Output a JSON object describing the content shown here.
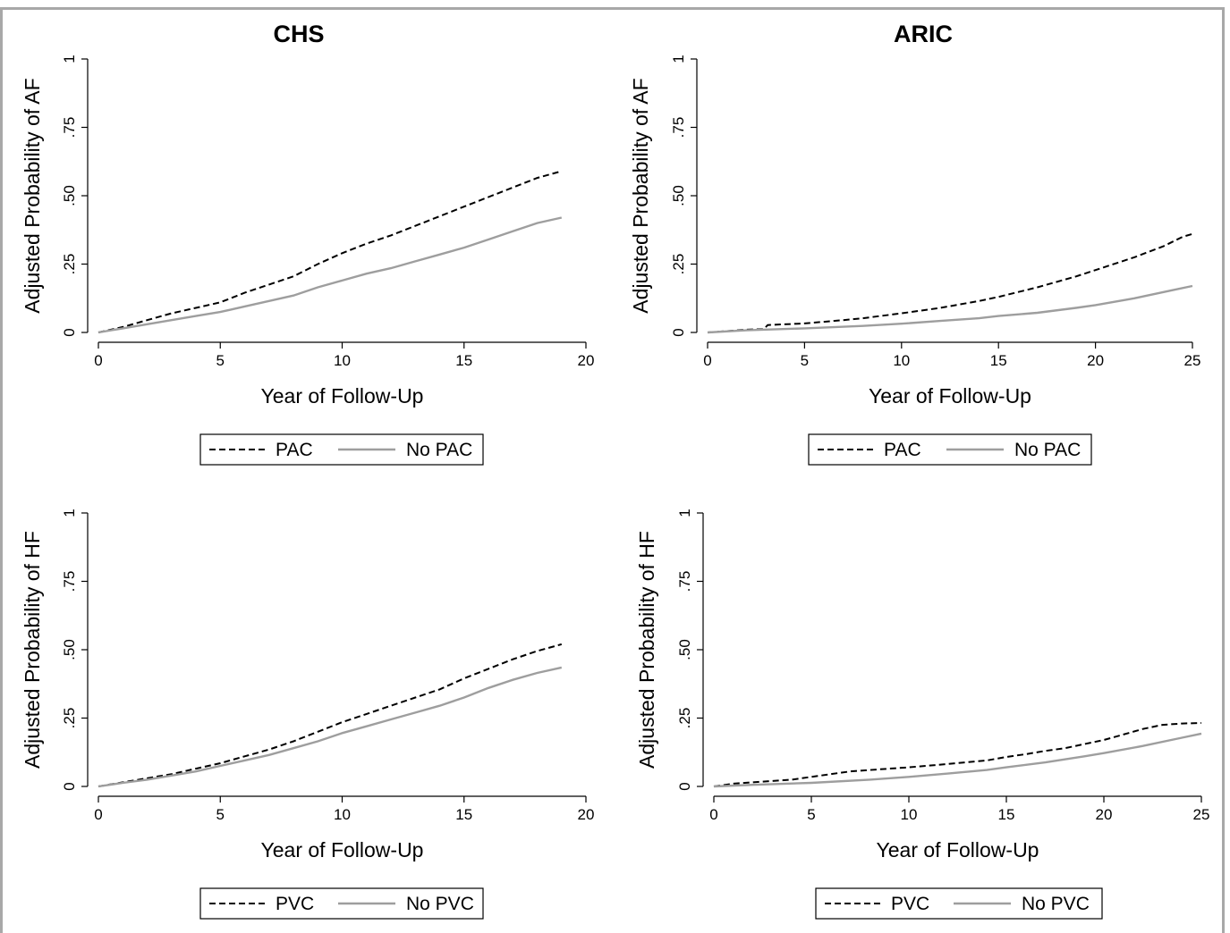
{
  "column_titles": [
    "CHS",
    "ARIC"
  ],
  "chart_data": [
    {
      "type": "line",
      "cohort": "CHS",
      "xlabel": "Year of Follow-Up",
      "ylabel": "Adjusted Probability of AF",
      "xlim": [
        0,
        19
      ],
      "ylim": [
        0,
        1
      ],
      "xticks": [
        0,
        5,
        10,
        15,
        20
      ],
      "xtick_labels": [
        "0",
        "5",
        "10",
        "15",
        "20"
      ],
      "yticks": [
        0,
        0.25,
        0.5,
        0.75,
        1
      ],
      "ytick_labels": [
        "0",
        ".25",
        ".50",
        ".75",
        "1"
      ],
      "legend_position": "bottom",
      "series": [
        {
          "name": "PAC",
          "style": "dashed",
          "color": "#000000",
          "x": [
            0,
            1,
            2,
            3,
            4,
            5,
            6,
            7,
            8,
            9,
            10,
            11,
            12,
            13,
            14,
            15,
            16,
            17,
            18,
            19
          ],
          "y": [
            0,
            0.02,
            0.045,
            0.07,
            0.09,
            0.11,
            0.145,
            0.175,
            0.205,
            0.25,
            0.29,
            0.325,
            0.355,
            0.39,
            0.425,
            0.46,
            0.495,
            0.53,
            0.565,
            0.59
          ]
        },
        {
          "name": "No PAC",
          "style": "solid",
          "color": "#9e9e9e",
          "x": [
            0,
            1,
            2,
            3,
            4,
            5,
            6,
            7,
            8,
            9,
            10,
            11,
            12,
            13,
            14,
            15,
            16,
            17,
            18,
            19
          ],
          "y": [
            0,
            0.015,
            0.03,
            0.045,
            0.06,
            0.075,
            0.095,
            0.115,
            0.135,
            0.165,
            0.19,
            0.215,
            0.235,
            0.26,
            0.285,
            0.31,
            0.34,
            0.37,
            0.4,
            0.42
          ]
        }
      ]
    },
    {
      "type": "line",
      "cohort": "ARIC",
      "xlabel": "Year of Follow-Up",
      "ylabel": "Adjusted Probability of AF",
      "xlim": [
        0,
        25
      ],
      "ylim": [
        0,
        1
      ],
      "xticks": [
        0,
        5,
        10,
        15,
        20,
        25
      ],
      "xtick_labels": [
        "0",
        "5",
        "10",
        "15",
        "20",
        "25"
      ],
      "yticks": [
        0,
        0.25,
        0.5,
        0.75,
        1
      ],
      "ytick_labels": [
        "0",
        ".25",
        ".50",
        ".75",
        "1"
      ],
      "legend_position": "bottom",
      "series": [
        {
          "name": "PAC",
          "style": "dashed",
          "color": "#000000",
          "x": [
            0,
            1,
            2,
            2.9,
            3.1,
            5,
            7,
            8,
            10,
            12,
            14,
            15,
            17,
            19,
            20,
            22,
            23.5,
            24.5,
            25
          ],
          "y": [
            0,
            0.005,
            0.01,
            0.012,
            0.027,
            0.033,
            0.045,
            0.052,
            0.07,
            0.09,
            0.115,
            0.13,
            0.165,
            0.205,
            0.228,
            0.275,
            0.315,
            0.35,
            0.36
          ]
        },
        {
          "name": "No PAC",
          "style": "solid",
          "color": "#9e9e9e",
          "x": [
            0,
            2,
            5,
            8,
            10,
            12,
            14,
            15,
            17,
            19,
            20,
            22,
            24,
            25
          ],
          "y": [
            0,
            0.008,
            0.015,
            0.024,
            0.032,
            0.042,
            0.052,
            0.06,
            0.072,
            0.09,
            0.1,
            0.125,
            0.155,
            0.17
          ]
        }
      ]
    },
    {
      "type": "line",
      "cohort": "CHS",
      "xlabel": "Year of Follow-Up",
      "ylabel": "Adjusted Probability of HF",
      "xlim": [
        0,
        19
      ],
      "ylim": [
        0,
        1
      ],
      "xticks": [
        0,
        5,
        10,
        15,
        20
      ],
      "xtick_labels": [
        "0",
        "5",
        "10",
        "15",
        "20"
      ],
      "yticks": [
        0,
        0.25,
        0.5,
        0.75,
        1
      ],
      "ytick_labels": [
        "0",
        ".25",
        ".50",
        ".75",
        "1"
      ],
      "legend_position": "bottom",
      "series": [
        {
          "name": "PVC",
          "style": "dashed",
          "color": "#000000",
          "x": [
            0,
            1,
            2,
            3,
            4,
            5,
            6,
            7,
            8,
            9,
            10,
            11,
            12,
            13,
            14,
            15,
            16,
            17,
            18,
            19
          ],
          "y": [
            0,
            0.015,
            0.03,
            0.045,
            0.065,
            0.085,
            0.11,
            0.135,
            0.165,
            0.2,
            0.235,
            0.265,
            0.295,
            0.325,
            0.355,
            0.395,
            0.43,
            0.465,
            0.495,
            0.52
          ]
        },
        {
          "name": "No PVC",
          "style": "solid",
          "color": "#9e9e9e",
          "x": [
            0,
            1,
            2,
            3,
            4,
            5,
            6,
            7,
            8,
            9,
            10,
            11,
            12,
            13,
            14,
            15,
            16,
            17,
            18,
            19
          ],
          "y": [
            0,
            0.013,
            0.025,
            0.04,
            0.055,
            0.075,
            0.095,
            0.115,
            0.14,
            0.165,
            0.195,
            0.22,
            0.245,
            0.27,
            0.295,
            0.325,
            0.36,
            0.39,
            0.415,
            0.435
          ]
        }
      ]
    },
    {
      "type": "line",
      "cohort": "ARIC",
      "xlabel": "Year of Follow-Up",
      "ylabel": "Adjusted Probability of HF",
      "xlim": [
        0,
        25
      ],
      "ylim": [
        0,
        1
      ],
      "xticks": [
        0,
        5,
        10,
        15,
        20,
        25
      ],
      "xtick_labels": [
        "0",
        "5",
        "10",
        "15",
        "20",
        "25"
      ],
      "yticks": [
        0,
        0.25,
        0.5,
        0.75,
        1
      ],
      "ytick_labels": [
        "0",
        ".25",
        ".50",
        ".75",
        "1"
      ],
      "legend_position": "bottom",
      "series": [
        {
          "name": "PVC",
          "style": "dashed",
          "color": "#000000",
          "x": [
            0,
            1,
            2,
            3,
            4,
            5,
            6,
            7,
            8,
            10,
            12,
            14,
            15,
            16,
            17,
            18,
            19,
            20,
            21,
            22,
            23,
            24,
            25
          ],
          "y": [
            0,
            0.01,
            0.015,
            0.02,
            0.025,
            0.035,
            0.045,
            0.055,
            0.06,
            0.07,
            0.082,
            0.095,
            0.108,
            0.118,
            0.13,
            0.14,
            0.155,
            0.17,
            0.19,
            0.21,
            0.225,
            0.23,
            0.232
          ]
        },
        {
          "name": "No PVC",
          "style": "solid",
          "color": "#9e9e9e",
          "x": [
            0,
            2,
            5,
            8,
            10,
            12,
            14,
            15,
            17,
            19,
            20,
            22,
            24,
            25
          ],
          "y": [
            0,
            0.006,
            0.013,
            0.025,
            0.035,
            0.047,
            0.06,
            0.07,
            0.088,
            0.11,
            0.122,
            0.148,
            0.178,
            0.193
          ]
        }
      ]
    }
  ]
}
